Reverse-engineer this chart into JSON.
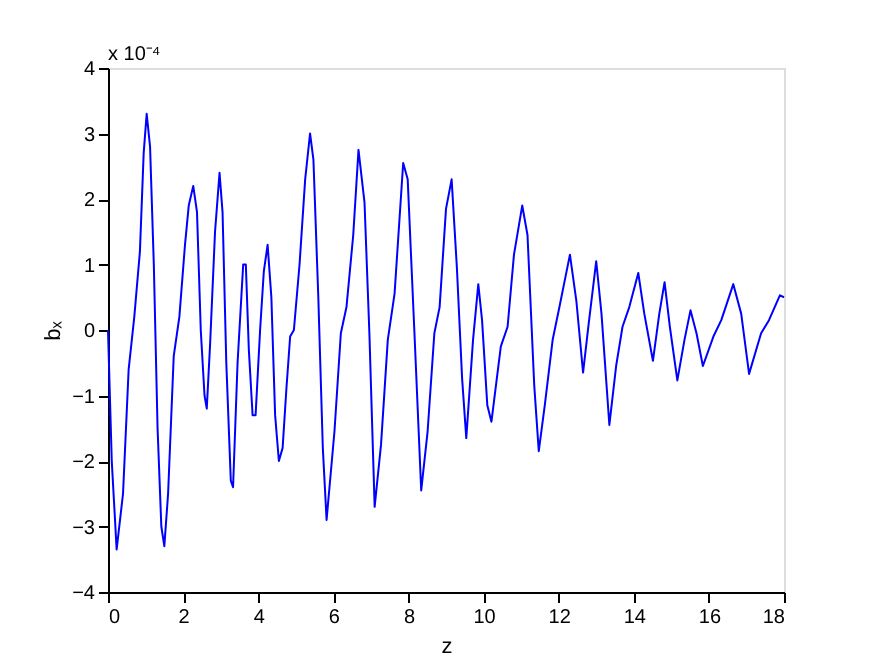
{
  "chart_data": {
    "type": "line",
    "xlabel": "z",
    "ylabel": "bₓ",
    "annotations": [
      "x 10⁻⁴"
    ],
    "xlim": [
      0,
      18
    ],
    "xticks": [
      0,
      2,
      4,
      6,
      8,
      10,
      12,
      14,
      16,
      18
    ],
    "ylim": [
      -4,
      4
    ],
    "yticks": [
      -4,
      -3,
      -2,
      -1,
      0,
      1,
      2,
      3,
      4
    ],
    "grid": false,
    "line_style": "solid",
    "series": [
      {
        "color": "#0000ff",
        "x": [
          0,
          0.1,
          0.23,
          0.4,
          0.55,
          0.7,
          0.85,
          0.95,
          1.03,
          1.12,
          1.22,
          1.32,
          1.42,
          1.5,
          1.6,
          1.75,
          1.9,
          2.05,
          2.15,
          2.27,
          2.37,
          2.47,
          2.57,
          2.63,
          2.72,
          2.85,
          2.97,
          3.05,
          3.15,
          3.27,
          3.33,
          3.45,
          3.6,
          3.67,
          3.75,
          3.85,
          3.93,
          4.05,
          4.15,
          4.25,
          4.35,
          4.45,
          4.55,
          4.65,
          4.75,
          4.85,
          4.95,
          5.1,
          5.25,
          5.38,
          5.47,
          5.6,
          5.72,
          5.82,
          6.03,
          6.2,
          6.35,
          6.53,
          6.67,
          6.83,
          6.96,
          7.1,
          7.27,
          7.45,
          7.63,
          7.86,
          7.98,
          8.16,
          8.34,
          8.51,
          8.69,
          8.83,
          9.0,
          9.15,
          9.29,
          9.43,
          9.54,
          9.72,
          9.86,
          9.96,
          10.1,
          10.21,
          10.46,
          10.64,
          10.81,
          11.03,
          11.17,
          11.35,
          11.47,
          11.63,
          11.84,
          12.02,
          12.3,
          12.47,
          12.65,
          12.79,
          13.0,
          13.14,
          13.35,
          13.53,
          13.7,
          13.88,
          14.12,
          14.28,
          14.51,
          14.68,
          14.82,
          14.96,
          15.16,
          15.35,
          15.51,
          15.67,
          15.84,
          16.12,
          16.33,
          16.65,
          16.86,
          17.07,
          17.39,
          17.6,
          17.89,
          18.0
        ],
        "values": [
          0,
          -2.0,
          -3.35,
          -2.5,
          -0.6,
          0.2,
          1.2,
          2.7,
          3.3,
          2.8,
          1.0,
          -1.5,
          -3.0,
          -3.3,
          -2.5,
          -0.4,
          0.2,
          1.3,
          1.9,
          2.2,
          1.8,
          0.0,
          -1.0,
          -1.2,
          -0.2,
          1.5,
          2.4,
          1.8,
          -0.5,
          -2.3,
          -2.4,
          -0.5,
          1.0,
          1.0,
          -0.3,
          -1.3,
          -1.3,
          0.0,
          0.9,
          1.3,
          0.5,
          -1.3,
          -2.0,
          -1.8,
          -0.9,
          -0.1,
          0.0,
          1.0,
          2.3,
          3.0,
          2.6,
          0.5,
          -1.8,
          -2.9,
          -1.55,
          -0.05,
          0.35,
          1.45,
          2.75,
          1.95,
          -0.05,
          -2.7,
          -1.75,
          -0.15,
          0.55,
          2.55,
          2.3,
          -0.05,
          -2.45,
          -1.55,
          -0.05,
          0.35,
          1.85,
          2.3,
          0.95,
          -0.75,
          -1.65,
          -0.15,
          0.7,
          0.15,
          -1.15,
          -1.4,
          -0.25,
          0.05,
          1.15,
          1.9,
          1.45,
          -0.85,
          -1.85,
          -1.15,
          -0.15,
          0.35,
          1.15,
          0.45,
          -0.65,
          0.05,
          1.05,
          0.25,
          -1.45,
          -0.55,
          0.05,
          0.35,
          0.87,
          0.25,
          -0.47,
          0.25,
          0.73,
          0.05,
          -0.77,
          -0.15,
          0.3,
          -0.05,
          -0.55,
          -0.1,
          0.15,
          0.7,
          0.25,
          -0.67,
          -0.05,
          0.15,
          0.53,
          0.5
        ]
      }
    ]
  }
}
